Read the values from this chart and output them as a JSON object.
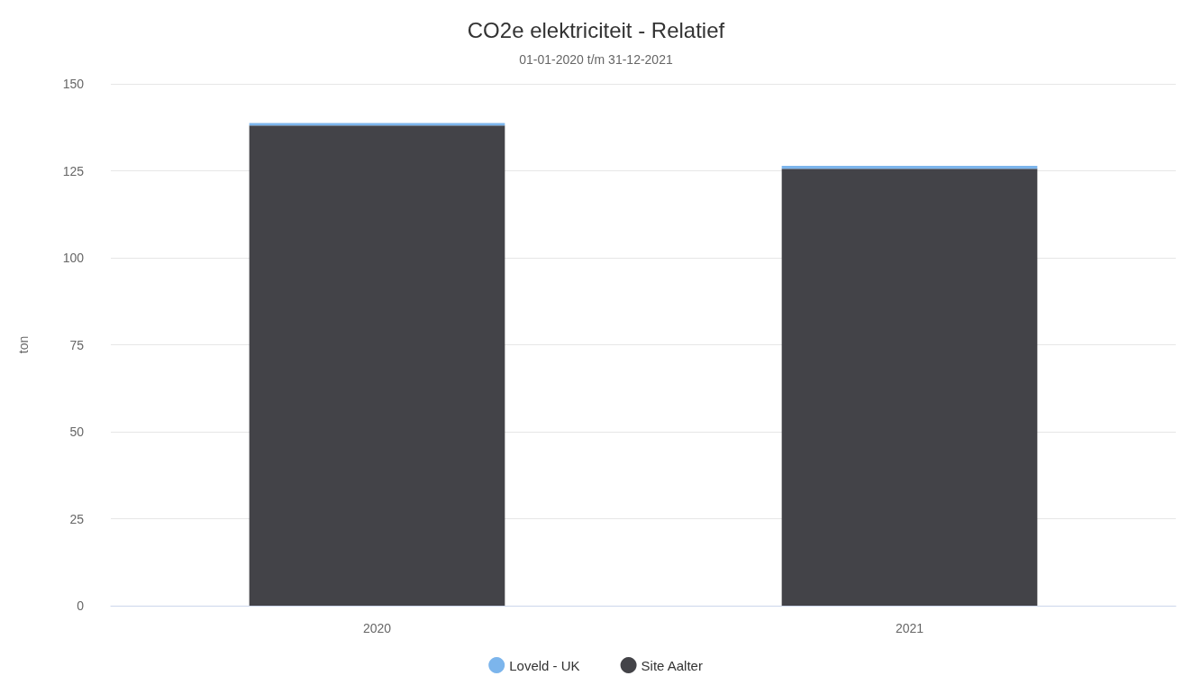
{
  "chart_data": {
    "type": "bar",
    "title": "CO2e elektriciteit - Relatief",
    "subtitle": "01-01-2020 t/m 31-12-2021",
    "ylabel": "ton",
    "categories": [
      "2020",
      "2021"
    ],
    "stacked": true,
    "series": [
      {
        "name": "Site Aalter",
        "color": "#434348",
        "values": [
          138,
          125.6
        ]
      },
      {
        "name": "Loveld - UK",
        "color": "#7cb5ec",
        "values": [
          0.7,
          0.8
        ]
      }
    ],
    "ylim": [
      0,
      150
    ],
    "yticks": [
      0,
      25,
      50,
      75,
      100,
      125,
      150
    ],
    "grid": "y",
    "legend": "bottom"
  }
}
